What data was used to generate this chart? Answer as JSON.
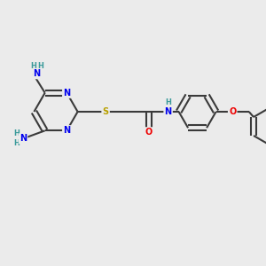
{
  "bg_color": "#ebebeb",
  "bond_color": "#3a3a3a",
  "bond_width": 1.5,
  "atom_colors": {
    "N": "#0000ee",
    "O": "#ee0000",
    "S": "#b8a000",
    "C": "#3a3a3a",
    "H": "#3a9a9a"
  },
  "font_size_atom": 7.0,
  "font_size_H": 6.0,
  "xlim": [
    0,
    10
  ],
  "ylim": [
    0,
    10
  ]
}
